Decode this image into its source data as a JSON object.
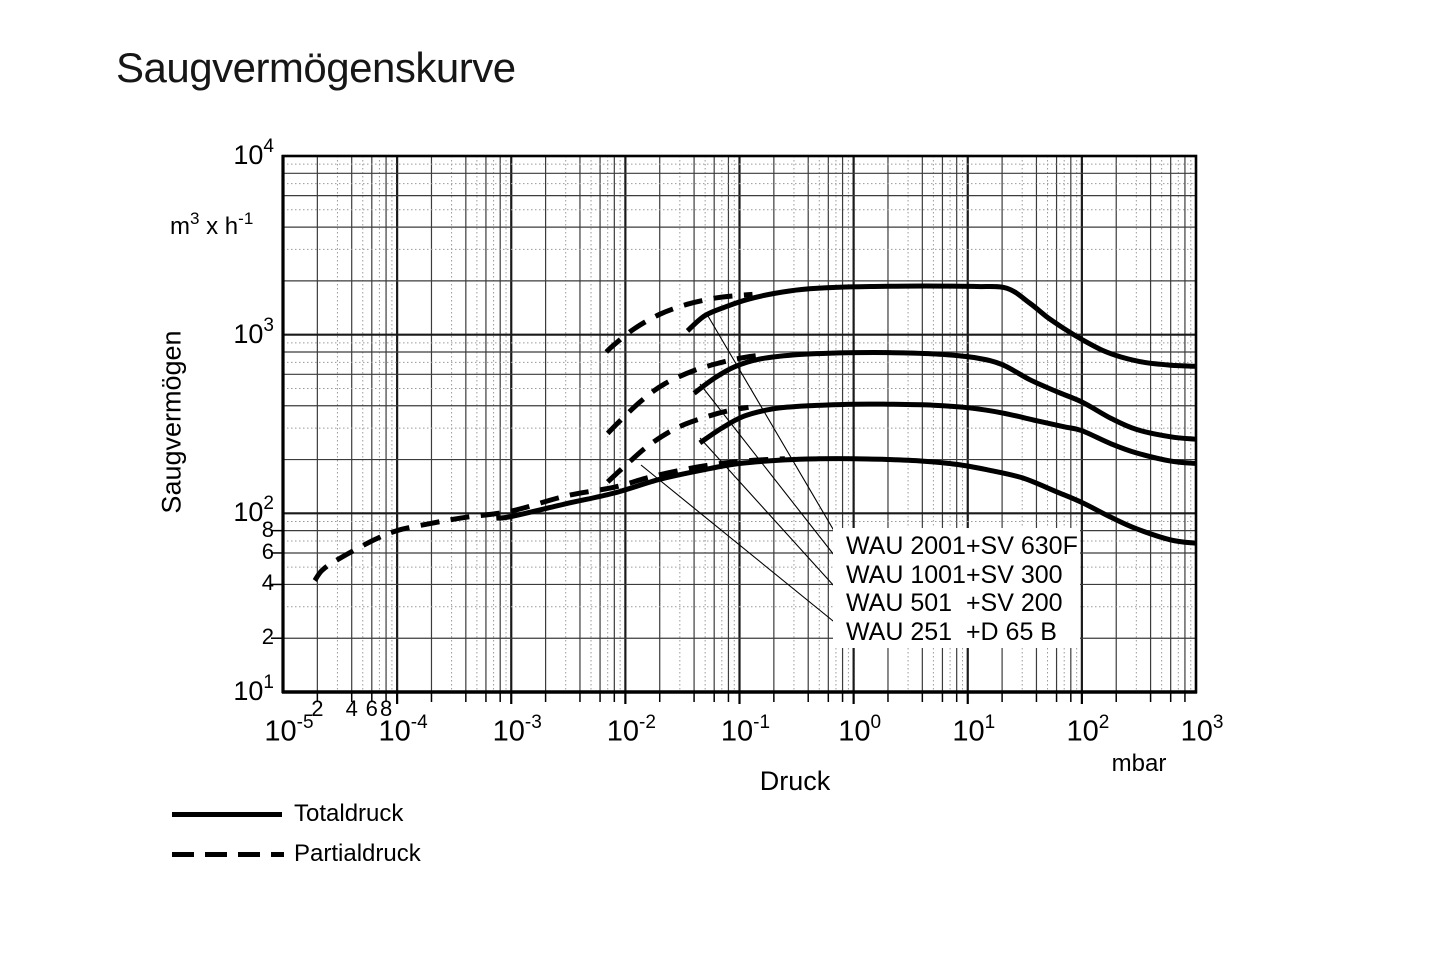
{
  "title": "Saugvermögenskurve",
  "axes": {
    "y": {
      "label": "Saugvermögen",
      "unit_parts": {
        "p1": "m",
        "sup1": "3",
        "p2": " x h",
        "sup2": "-1"
      },
      "tick_exponents": [
        "4",
        "3",
        "2",
        "1"
      ],
      "minor_tick_labels": [
        "8",
        "6",
        "4",
        "2"
      ]
    },
    "x": {
      "label": "Druck",
      "unit": "mbar",
      "tick_exponents": [
        "-5",
        "-4",
        "-3",
        "-2",
        "-1",
        "0",
        "1",
        "2",
        "3"
      ],
      "minor_tick_labels": [
        "2",
        "4",
        "6",
        "8"
      ]
    }
  },
  "curve_labels": [
    "WAU 2001+SV 630F",
    "WAU 1001+SV 300",
    "WAU 501  +SV 200",
    "WAU 251  +D 65 B"
  ],
  "legend": [
    {
      "style": "solid",
      "label": "Totaldruck"
    },
    {
      "style": "dashed",
      "label": "Partialdruck"
    }
  ],
  "colors": {
    "line": "#000000",
    "grid_major": "#1a1a1a",
    "grid_minor": "#3c3c3c",
    "grid_sub": "#9a9a9a",
    "background": "#ffffff"
  },
  "chart_data": {
    "type": "line",
    "title": "Saugvermögenskurve",
    "xlabel": "Druck",
    "x_unit": "mbar",
    "ylabel": "Saugvermögen",
    "y_unit": "m3 x h-1",
    "x_scale": "log",
    "y_scale": "log",
    "xlim": [
      1e-05,
      1000
    ],
    "ylim": [
      10,
      10000
    ],
    "grid": true,
    "legend_position": "bottom-left",
    "series": [
      {
        "name": "WAU 2001+SV 630F",
        "pressure_type": "Totaldruck",
        "line_style": "solid",
        "points": [
          [
            0.035,
            1050
          ],
          [
            0.05,
            1280
          ],
          [
            0.08,
            1450
          ],
          [
            0.12,
            1580
          ],
          [
            0.2,
            1700
          ],
          [
            0.35,
            1790
          ],
          [
            0.7,
            1840
          ],
          [
            1.5,
            1860
          ],
          [
            3,
            1870
          ],
          [
            6,
            1870
          ],
          [
            12,
            1860
          ],
          [
            22,
            1820
          ],
          [
            35,
            1500
          ],
          [
            50,
            1250
          ],
          [
            70,
            1080
          ],
          [
            100,
            940
          ],
          [
            150,
            820
          ],
          [
            220,
            750
          ],
          [
            350,
            700
          ],
          [
            600,
            675
          ],
          [
            1000,
            665
          ]
        ]
      },
      {
        "name": "WAU 2001+SV 630F",
        "pressure_type": "Partialdruck",
        "line_style": "dashed",
        "points": [
          [
            0.0068,
            800
          ],
          [
            0.008,
            880
          ],
          [
            0.012,
            1080
          ],
          [
            0.02,
            1300
          ],
          [
            0.035,
            1480
          ],
          [
            0.06,
            1600
          ],
          [
            0.09,
            1650
          ],
          [
            0.13,
            1680
          ]
        ]
      },
      {
        "name": "WAU 1001+SV 300",
        "pressure_type": "Totaldruck",
        "line_style": "solid",
        "points": [
          [
            0.04,
            470
          ],
          [
            0.06,
            570
          ],
          [
            0.09,
            660
          ],
          [
            0.15,
            730
          ],
          [
            0.3,
            770
          ],
          [
            0.7,
            790
          ],
          [
            1.5,
            795
          ],
          [
            3,
            790
          ],
          [
            6,
            775
          ],
          [
            12,
            740
          ],
          [
            20,
            680
          ],
          [
            35,
            560
          ],
          [
            60,
            480
          ],
          [
            100,
            420
          ],
          [
            180,
            340
          ],
          [
            300,
            295
          ],
          [
            600,
            268
          ],
          [
            1000,
            260
          ]
        ]
      },
      {
        "name": "WAU 1001+SV 300",
        "pressure_type": "Partialdruck",
        "line_style": "dashed",
        "points": [
          [
            0.007,
            280
          ],
          [
            0.009,
            330
          ],
          [
            0.014,
            430
          ],
          [
            0.022,
            530
          ],
          [
            0.04,
            630
          ],
          [
            0.07,
            700
          ],
          [
            0.11,
            745
          ],
          [
            0.17,
            775
          ]
        ]
      },
      {
        "name": "WAU 501 +SV 200",
        "pressure_type": "Totaldruck",
        "line_style": "solid",
        "points": [
          [
            0.045,
            248
          ],
          [
            0.07,
            300
          ],
          [
            0.11,
            350
          ],
          [
            0.2,
            385
          ],
          [
            0.4,
            400
          ],
          [
            1,
            408
          ],
          [
            2,
            408
          ],
          [
            5,
            403
          ],
          [
            10,
            390
          ],
          [
            20,
            365
          ],
          [
            40,
            330
          ],
          [
            70,
            305
          ],
          [
            100,
            290
          ],
          [
            180,
            245
          ],
          [
            300,
            218
          ],
          [
            600,
            196
          ],
          [
            1000,
            190
          ]
        ]
      },
      {
        "name": "WAU 501 +SV 200",
        "pressure_type": "Partialdruck",
        "line_style": "dashed",
        "points": [
          [
            0.007,
            150
          ],
          [
            0.01,
            185
          ],
          [
            0.016,
            240
          ],
          [
            0.028,
            300
          ],
          [
            0.05,
            345
          ],
          [
            0.08,
            375
          ],
          [
            0.12,
            392
          ]
        ]
      },
      {
        "name": "WAU 251 +D 65 B",
        "pressure_type": "Totaldruck",
        "line_style": "solid",
        "points": [
          [
            0.00074,
            94
          ],
          [
            0.001,
            96
          ],
          [
            0.003,
            113
          ],
          [
            0.008,
            130
          ],
          [
            0.02,
            155
          ],
          [
            0.05,
            176
          ],
          [
            0.1,
            190
          ],
          [
            0.25,
            199
          ],
          [
            0.5,
            202
          ],
          [
            1,
            202
          ],
          [
            2,
            200
          ],
          [
            4,
            196
          ],
          [
            8,
            188
          ],
          [
            15,
            175
          ],
          [
            30,
            158
          ],
          [
            60,
            132
          ],
          [
            100,
            115
          ],
          [
            180,
            95
          ],
          [
            300,
            82
          ],
          [
            600,
            71
          ],
          [
            1000,
            68
          ]
        ]
      },
      {
        "name": "WAU 251 +D 65 B",
        "pressure_type": "Partialdruck",
        "line_style": "dashed",
        "points": [
          [
            1.9e-05,
            42
          ],
          [
            2.2e-05,
            48
          ],
          [
            3e-05,
            55
          ],
          [
            6e-05,
            70
          ],
          [
            0.0001,
            80
          ],
          [
            0.0002,
            88
          ],
          [
            0.0004,
            95
          ],
          [
            0.001,
            103
          ],
          [
            0.003,
            125
          ],
          [
            0.008,
            140
          ],
          [
            0.015,
            157
          ],
          [
            0.03,
            174
          ],
          [
            0.06,
            188
          ],
          [
            0.12,
            197
          ],
          [
            0.25,
            202
          ]
        ]
      }
    ]
  }
}
